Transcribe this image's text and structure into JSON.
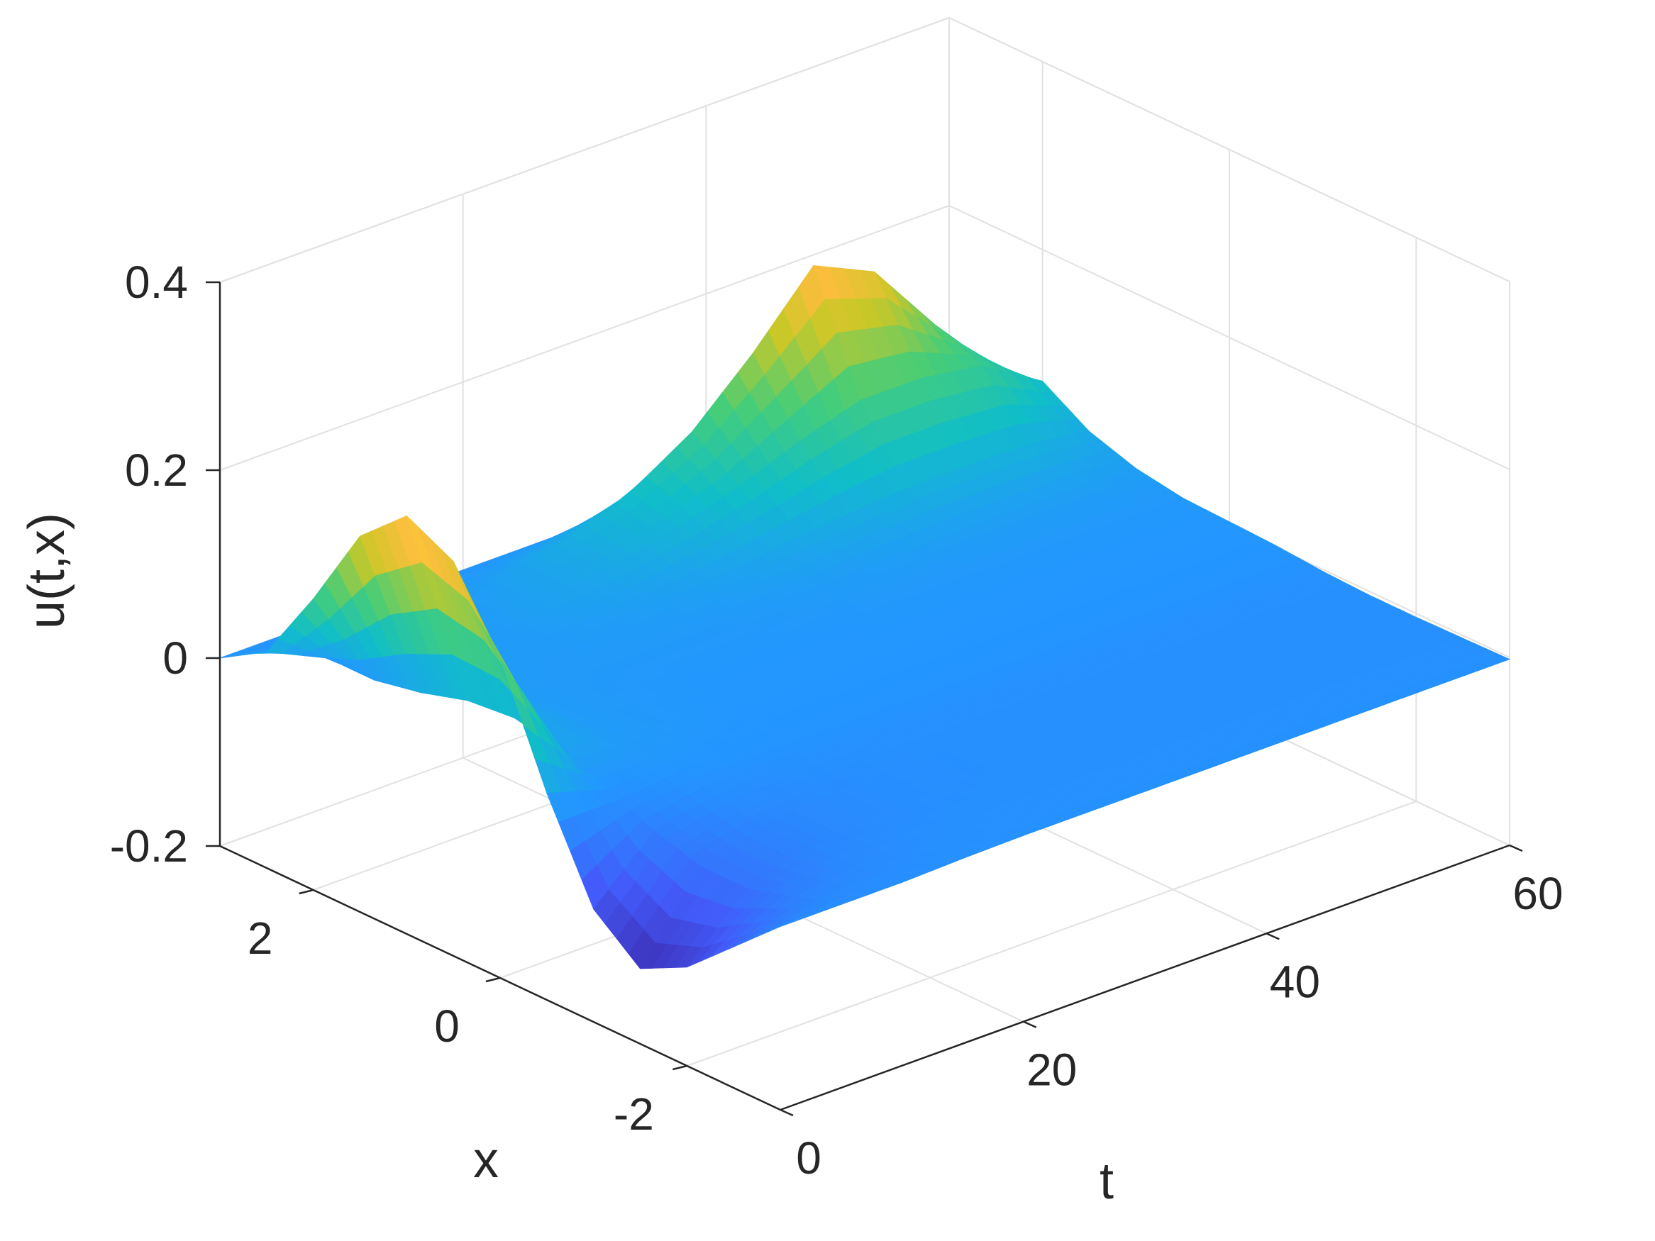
{
  "chart_data": {
    "type": "surface",
    "title": "",
    "xlabel": "t",
    "ylabel": "x",
    "zlabel": "u(t,x)",
    "xlim": [
      0,
      60
    ],
    "ylim": [
      -3,
      3
    ],
    "zlim": [
      -0.2,
      0.4
    ],
    "x_ticks": [
      "0",
      "20",
      "40",
      "60"
    ],
    "y_ticks": [
      "-2",
      "0",
      "2"
    ],
    "z_ticks": [
      "-0.2",
      "0",
      "0.2",
      "0.4"
    ],
    "grid": true,
    "colormap": "parula",
    "surface": {
      "t": [
        0,
        5,
        10,
        15,
        20,
        25,
        30,
        35,
        40,
        45,
        50,
        55,
        60
      ],
      "x": [
        -3,
        -2.5,
        -2,
        -1.5,
        -1,
        -0.5,
        0,
        0.5,
        1,
        1.5,
        2,
        2.5,
        3
      ],
      "u": [
        [
          -0.005,
          -0.05,
          -0.095,
          -0.12,
          -0.08,
          0.02,
          0.14,
          0.22,
          0.245,
          0.2,
          0.11,
          0.03,
          0.0
        ],
        [
          -0.005,
          -0.02,
          -0.035,
          -0.035,
          -0.02,
          0.0,
          0.02,
          0.03,
          0.025,
          0.01,
          0.0,
          0.0,
          0.0
        ],
        [
          -0.005,
          -0.01,
          -0.015,
          -0.015,
          -0.005,
          0.005,
          0.01,
          0.01,
          0.01,
          0.01,
          0.005,
          0.0,
          0.0
        ],
        [
          -0.003,
          -0.005,
          -0.008,
          -0.008,
          -0.003,
          0.003,
          0.006,
          0.007,
          0.008,
          0.01,
          0.012,
          0.008,
          0.0
        ],
        [
          -0.002,
          -0.003,
          -0.005,
          -0.005,
          -0.002,
          0.002,
          0.004,
          0.005,
          0.008,
          0.012,
          0.02,
          0.02,
          0.0
        ],
        [
          -0.002,
          -0.003,
          -0.004,
          -0.004,
          -0.002,
          0.002,
          0.004,
          0.005,
          0.008,
          0.015,
          0.03,
          0.035,
          0.0
        ],
        [
          -0.002,
          -0.003,
          -0.004,
          -0.004,
          -0.002,
          0.002,
          0.004,
          0.005,
          0.01,
          0.02,
          0.045,
          0.06,
          0.0
        ],
        [
          -0.002,
          -0.003,
          -0.004,
          -0.004,
          -0.002,
          0.002,
          0.004,
          0.006,
          0.012,
          0.028,
          0.065,
          0.1,
          0.0
        ],
        [
          -0.002,
          -0.003,
          -0.004,
          -0.004,
          -0.002,
          0.002,
          0.004,
          0.006,
          0.014,
          0.035,
          0.09,
          0.16,
          0.0
        ],
        [
          -0.002,
          -0.003,
          -0.004,
          -0.004,
          -0.002,
          0.002,
          0.004,
          0.006,
          0.016,
          0.04,
          0.11,
          0.23,
          0.0
        ],
        [
          -0.002,
          -0.003,
          -0.004,
          -0.004,
          -0.002,
          0.002,
          0.004,
          0.006,
          0.016,
          0.04,
          0.11,
          0.2,
          0.0
        ],
        [
          -0.002,
          -0.003,
          -0.004,
          -0.004,
          -0.002,
          0.002,
          0.004,
          0.006,
          0.016,
          0.04,
          0.1,
          0.12,
          0.0
        ],
        [
          -0.002,
          -0.003,
          -0.004,
          -0.004,
          -0.002,
          0.002,
          0.004,
          0.006,
          0.014,
          0.03,
          0.06,
          0.05,
          0.0
        ]
      ]
    }
  }
}
